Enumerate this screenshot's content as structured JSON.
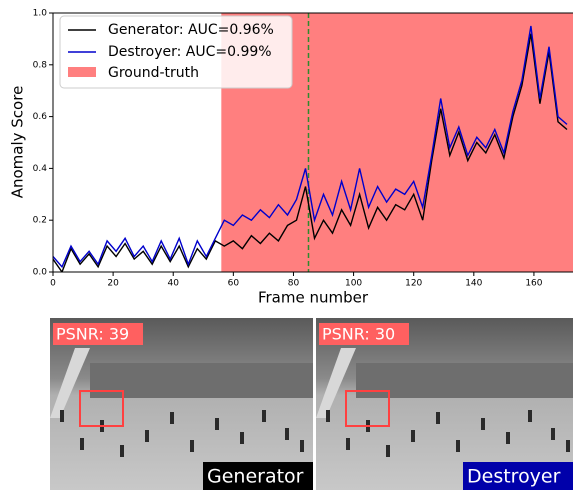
{
  "chart_data": {
    "type": "line",
    "xlabel": "Frame number",
    "ylabel": "Anomaly Score",
    "x": [
      0,
      3,
      6,
      9,
      12,
      15,
      18,
      21,
      24,
      27,
      30,
      33,
      36,
      39,
      42,
      45,
      48,
      51,
      54,
      57,
      60,
      63,
      66,
      69,
      72,
      75,
      78,
      81,
      84,
      87,
      90,
      93,
      96,
      99,
      102,
      105,
      108,
      111,
      114,
      117,
      120,
      123,
      126,
      129,
      132,
      135,
      138,
      141,
      144,
      147,
      150,
      153,
      156,
      159,
      162,
      165,
      168,
      171
    ],
    "series": [
      {
        "name": "Generator: AUC=0.96%",
        "color": "#000000",
        "values": [
          0.05,
          0.0,
          0.09,
          0.03,
          0.07,
          0.02,
          0.1,
          0.06,
          0.11,
          0.05,
          0.08,
          0.03,
          0.1,
          0.04,
          0.1,
          0.02,
          0.09,
          0.05,
          0.12,
          0.1,
          0.12,
          0.09,
          0.14,
          0.11,
          0.15,
          0.12,
          0.18,
          0.2,
          0.33,
          0.13,
          0.2,
          0.15,
          0.24,
          0.18,
          0.3,
          0.17,
          0.25,
          0.2,
          0.26,
          0.24,
          0.3,
          0.2,
          0.43,
          0.63,
          0.45,
          0.54,
          0.43,
          0.5,
          0.46,
          0.53,
          0.44,
          0.6,
          0.72,
          0.92,
          0.65,
          0.85,
          0.58,
          0.55
        ]
      },
      {
        "name": "Destroyer: AUC=0.99%",
        "color": "#0000cc",
        "values": [
          0.06,
          0.02,
          0.1,
          0.04,
          0.08,
          0.03,
          0.12,
          0.08,
          0.13,
          0.06,
          0.1,
          0.04,
          0.12,
          0.05,
          0.13,
          0.03,
          0.12,
          0.06,
          0.13,
          0.2,
          0.18,
          0.22,
          0.2,
          0.24,
          0.21,
          0.26,
          0.22,
          0.28,
          0.4,
          0.2,
          0.3,
          0.22,
          0.35,
          0.24,
          0.4,
          0.25,
          0.33,
          0.27,
          0.32,
          0.3,
          0.35,
          0.25,
          0.45,
          0.67,
          0.48,
          0.56,
          0.45,
          0.52,
          0.48,
          0.55,
          0.46,
          0.62,
          0.74,
          0.95,
          0.67,
          0.87,
          0.6,
          0.57
        ]
      }
    ],
    "ground_truth": {
      "name": "Ground-truth",
      "color": "#ff7f7f",
      "start": 56
    },
    "marker_x": 85,
    "marker_color": "#2e8b2e",
    "xlim": [
      0,
      173
    ],
    "xticks": [
      0,
      20,
      40,
      60,
      80,
      100,
      120,
      140,
      160
    ],
    "ylim": [
      0,
      1
    ],
    "yticks": [
      {
        "value": 0,
        "label": "0.0"
      },
      0.2,
      0.4,
      0.6,
      0.8,
      {
        "value": 1,
        "label": "1.0"
      }
    ]
  },
  "panels": [
    {
      "psnr": "PSNR: 39",
      "caption": "Generator",
      "caption_bg": "#000000"
    },
    {
      "psnr": "PSNR: 30",
      "caption": "Destroyer",
      "caption_bg": "#0000aa"
    }
  ]
}
